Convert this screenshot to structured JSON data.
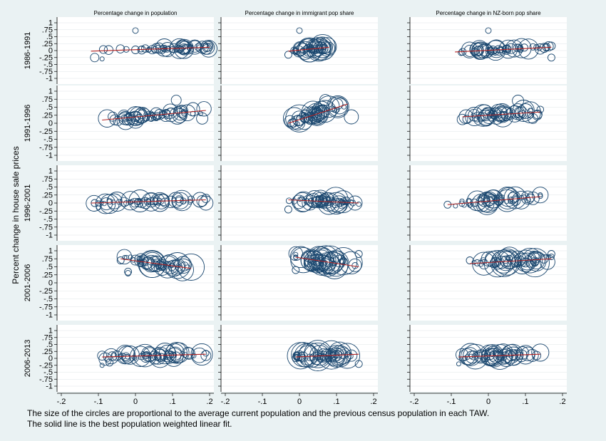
{
  "y_axis_title": "Percent change in house sale prices",
  "y_tick_labels": [
    "1",
    ".75",
    ".5",
    ".25",
    "0",
    "-.25",
    "-.5",
    "-.75",
    "-1"
  ],
  "caption": {
    "line1": "The size of the circles are proportional to the average current population and the previous census population in each TAW.",
    "line2": "The solid line is the best population weighted linear fit."
  },
  "colors": {
    "background": "#eaf2f3",
    "panel": "#ffffff",
    "marker": "#1a476f",
    "fit_line": "#b22222"
  },
  "chart_data": {
    "type": "scatter",
    "columns": [
      {
        "title": "Percentage change in population",
        "xlim": [
          -0.2,
          0.2
        ],
        "x_ticks": [
          -0.2,
          -0.1,
          0,
          0.1,
          0.2
        ],
        "x_tick_labels": [
          "-.2",
          "-.1",
          "0",
          ".1",
          ".2"
        ]
      },
      {
        "title": "Percentage change in immigrant pop share",
        "xlim": [
          -0.2,
          0.2
        ],
        "x_ticks": [
          -0.2,
          -0.1,
          0,
          0.1,
          0.2
        ],
        "x_tick_labels": [
          "-.2",
          "-.1",
          "0",
          ".1",
          ".2"
        ]
      },
      {
        "title": "Percentage change in NZ-born pop share",
        "xlim": [
          -0.2,
          0.2
        ],
        "x_ticks": [
          -0.2,
          -0.1,
          0,
          0.1,
          0.2
        ],
        "x_tick_labels": [
          "-.2",
          "-.1",
          "0",
          ".1",
          ".2"
        ]
      }
    ],
    "rows": [
      "1986-1991",
      "1991-1996",
      "1996-2001",
      "2001-2006",
      "2006-2013"
    ],
    "ylim": [
      -1,
      1
    ],
    "y_ticks": [
      1,
      0.75,
      0.5,
      0.25,
      0,
      -0.25,
      -0.5,
      -0.75,
      -1
    ],
    "panels": [
      {
        "row": 0,
        "col": 0,
        "clusters": [
          [
            -0.12,
            0.2,
            0.05,
            6,
            4,
            10
          ],
          [
            0.0,
            0.2,
            0.05,
            50,
            3,
            15
          ]
        ],
        "fit": [
          [
            -0.12,
            -0.02
          ],
          [
            0.2,
            0.12
          ]
        ],
        "points": [
          [
            0,
            0.72,
            4
          ],
          [
            -0.11,
            -0.25,
            6
          ],
          [
            -0.09,
            -0.3,
            3
          ],
          [
            0.19,
            0.07,
            8
          ]
        ]
      },
      {
        "row": 0,
        "col": 1,
        "clusters": [
          [
            -0.02,
            0.08,
            0.05,
            50,
            3,
            18
          ]
        ],
        "fit": [
          [
            -0.03,
            -0.02
          ],
          [
            0.08,
            0.12
          ]
        ],
        "points": [
          [
            0.0,
            0.72,
            4
          ],
          [
            -0.03,
            -0.15,
            5
          ]
        ]
      },
      {
        "row": 0,
        "col": 2,
        "clusters": [
          [
            -0.08,
            0.17,
            0.05,
            55,
            3,
            15
          ]
        ],
        "fit": [
          [
            -0.09,
            -0.05
          ],
          [
            0.17,
            0.12
          ]
        ],
        "points": [
          [
            0,
            0.72,
            4
          ],
          [
            0.17,
            -0.25,
            5
          ]
        ]
      },
      {
        "row": 1,
        "col": 0,
        "clusters": [
          [
            -0.09,
            0.19,
            0.1,
            60,
            3,
            14
          ]
        ],
        "fit": [
          [
            -0.09,
            0.1
          ],
          [
            0.19,
            0.4
          ]
        ],
        "points": [
          [
            0.11,
            0.72,
            7
          ],
          [
            0.18,
            0.15,
            8
          ]
        ]
      },
      {
        "row": 1,
        "col": 1,
        "clusters": [
          [
            -0.03,
            0.12,
            0.12,
            55,
            3,
            20
          ]
        ],
        "fit": [
          [
            -0.03,
            0.0
          ],
          [
            0.13,
            0.6
          ]
        ],
        "points": [
          [
            0.07,
            0.72,
            8
          ],
          [
            0.14,
            0.2,
            10
          ],
          [
            -0.02,
            0.0,
            6
          ]
        ]
      },
      {
        "row": 1,
        "col": 2,
        "clusters": [
          [
            -0.07,
            0.14,
            0.1,
            55,
            3,
            16
          ]
        ],
        "fit": [
          [
            -0.07,
            0.2
          ],
          [
            0.14,
            0.35
          ]
        ],
        "points": [
          [
            0.08,
            0.7,
            8
          ],
          [
            0.12,
            0.15,
            7
          ]
        ]
      },
      {
        "row": 2,
        "col": 0,
        "clusters": [
          [
            -0.12,
            0.19,
            0.05,
            55,
            3,
            16
          ]
        ],
        "fit": [
          [
            -0.12,
            0.0
          ],
          [
            0.19,
            0.1
          ]
        ],
        "points": [
          [
            -0.11,
            0.0,
            5
          ],
          [
            -0.1,
            -0.15,
            3
          ],
          [
            0.19,
            0.0,
            10
          ]
        ]
      },
      {
        "row": 2,
        "col": 1,
        "clusters": [
          [
            -0.03,
            0.16,
            0.08,
            55,
            3,
            18
          ]
        ],
        "fit": [
          [
            -0.03,
            0.1
          ],
          [
            0.16,
            0.0
          ]
        ],
        "points": [
          [
            0.15,
            0.0,
            10
          ],
          [
            -0.03,
            -0.2,
            5
          ]
        ]
      },
      {
        "row": 2,
        "col": 2,
        "clusters": [
          [
            -0.11,
            0.14,
            0.08,
            55,
            3,
            16
          ]
        ],
        "fit": [
          [
            -0.11,
            -0.05
          ],
          [
            0.14,
            0.2
          ]
        ],
        "points": [
          [
            -0.11,
            -0.05,
            5
          ],
          [
            0.12,
            0.15,
            9
          ]
        ]
      },
      {
        "row": 3,
        "col": 0,
        "clusters": [
          [
            -0.03,
            0.15,
            0.1,
            55,
            3,
            20
          ]
        ],
        "fit": [
          [
            -0.04,
            0.75
          ],
          [
            0.15,
            0.45
          ]
        ],
        "points": [
          [
            -0.04,
            0.7,
            5
          ],
          [
            -0.02,
            0.35,
            5
          ],
          [
            -0.02,
            0.3,
            4
          ]
        ]
      },
      {
        "row": 3,
        "col": 1,
        "clusters": [
          [
            -0.01,
            0.16,
            0.12,
            55,
            3,
            20
          ]
        ],
        "fit": [
          [
            -0.01,
            0.8
          ],
          [
            0.16,
            0.5
          ]
        ],
        "points": [
          [
            0.16,
            0.9,
            5
          ],
          [
            0.15,
            0.55,
            9
          ],
          [
            -0.01,
            0.4,
            5
          ]
        ]
      },
      {
        "row": 3,
        "col": 2,
        "clusters": [
          [
            -0.04,
            0.17,
            0.12,
            55,
            3,
            20
          ]
        ],
        "fit": [
          [
            -0.05,
            0.6
          ],
          [
            0.17,
            0.75
          ]
        ],
        "points": [
          [
            0.17,
            0.9,
            5
          ],
          [
            -0.05,
            0.7,
            5
          ],
          [
            0.15,
            0.75,
            6
          ]
        ]
      },
      {
        "row": 4,
        "col": 0,
        "clusters": [
          [
            -0.09,
            0.19,
            0.08,
            60,
            3,
            16
          ]
        ],
        "fit": [
          [
            -0.09,
            0.05
          ],
          [
            0.19,
            0.15
          ]
        ],
        "points": [
          [
            -0.09,
            -0.25,
            3
          ],
          [
            -0.07,
            -0.15,
            5
          ],
          [
            0.19,
            0.1,
            7
          ]
        ]
      },
      {
        "row": 4,
        "col": 1,
        "clusters": [
          [
            -0.01,
            0.16,
            0.08,
            55,
            3,
            20
          ]
        ],
        "fit": [
          [
            -0.01,
            0.05
          ],
          [
            0.16,
            0.15
          ]
        ],
        "points": [
          [
            0.16,
            -0.2,
            5
          ],
          [
            0.14,
            0.1,
            8
          ]
        ]
      },
      {
        "row": 4,
        "col": 2,
        "clusters": [
          [
            -0.08,
            0.14,
            0.08,
            55,
            3,
            18
          ]
        ],
        "fit": [
          [
            -0.08,
            0.05
          ],
          [
            0.14,
            0.15
          ]
        ],
        "points": [
          [
            -0.08,
            -0.2,
            3
          ],
          [
            0.13,
            0.1,
            6
          ]
        ]
      }
    ]
  }
}
